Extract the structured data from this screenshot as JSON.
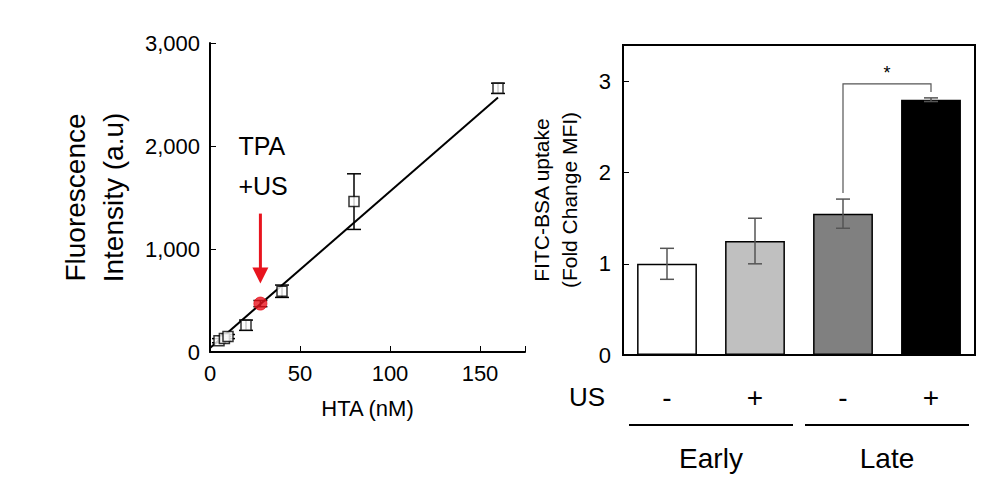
{
  "chart_data": [
    {
      "type": "scatter",
      "xlabel": "HTA (nM)",
      "ylabel": "Fluorescence\nIntensity (a.u)",
      "xlim": [
        0,
        175
      ],
      "xticks": [
        0,
        50,
        100,
        150
      ],
      "ylim": [
        0,
        3000
      ],
      "yticks": [
        0,
        1000,
        2000,
        3000
      ],
      "series": [
        {
          "type": "scatter",
          "marker": "open_square",
          "color": "#000000",
          "x": [
            5,
            8,
            10,
            20,
            40,
            80,
            160
          ],
          "values": [
            110,
            130,
            150,
            260,
            590,
            1460,
            2560
          ],
          "errors": [
            20,
            20,
            20,
            50,
            60,
            270,
            50
          ]
        },
        {
          "type": "line",
          "line_style": "solid",
          "color": "#000000",
          "x": [
            0,
            160
          ],
          "values": [
            40,
            2470
          ]
        },
        {
          "type": "scatter",
          "marker": "circle",
          "color": "#e8141e",
          "x": [
            28
          ],
          "values": [
            470
          ],
          "errors": [
            30
          ]
        }
      ],
      "annotations": [
        {
          "text": "TPA\n+US",
          "color": "#e8141e"
        }
      ]
    },
    {
      "type": "bar",
      "xlabel": "US",
      "ylabel": "FITC-BSA uptake\n(Fold Change MFI)",
      "categories": [
        "-",
        "+",
        "-",
        "+"
      ],
      "values": [
        1.0,
        1.25,
        1.55,
        2.8
      ],
      "errors": [
        0.17,
        0.25,
        0.16,
        0.02
      ],
      "colors": [
        "#ffffff",
        "#c0c0c0",
        "#808080",
        "#000000"
      ],
      "ylim": [
        0,
        3.4
      ],
      "yticks": [
        0,
        1,
        2,
        3
      ],
      "groups": [
        {
          "label": "Early",
          "categories": [
            0,
            1
          ]
        },
        {
          "label": "Late",
          "categories": [
            2,
            3
          ]
        }
      ],
      "significance": [
        {
          "from": 2,
          "to": 3,
          "label": "*"
        }
      ]
    }
  ]
}
